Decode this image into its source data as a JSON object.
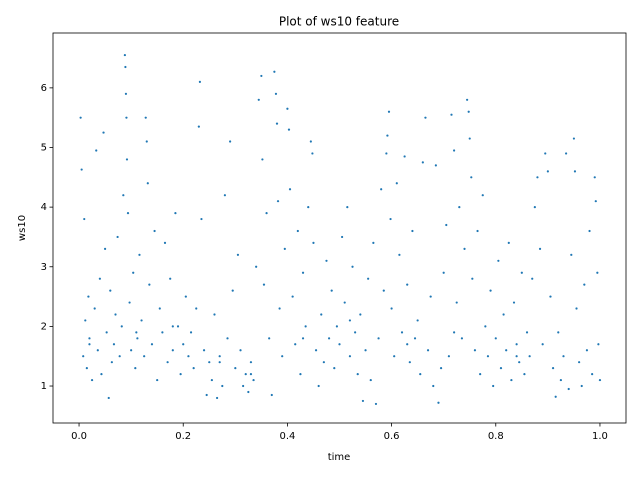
{
  "chart_data": {
    "type": "scatter",
    "title": "Plot of ws10 feature",
    "x_label": "time",
    "y_label": "ws10",
    "xlim": [
      -0.05,
      1.05
    ],
    "ylim": [
      0.38,
      6.92
    ],
    "xticks": [
      {
        "value": 0,
        "label": "0.0"
      },
      {
        "value": 0.2,
        "label": "0.2"
      },
      {
        "value": 0.4,
        "label": "0.4"
      },
      {
        "value": 0.6,
        "label": "0.6"
      },
      {
        "value": 0.8,
        "label": "0.8"
      },
      {
        "value": 1,
        "label": "1.0"
      }
    ],
    "yticks": [
      1,
      2,
      3,
      4,
      5,
      6
    ],
    "color": "#1f77b4",
    "x": [
      0.003,
      0.005,
      0.008,
      0.01,
      0.012,
      0.015,
      0.018,
      0.02,
      0.025,
      0.03,
      0.033,
      0.036,
      0.04,
      0.043,
      0.047,
      0.05,
      0.053,
      0.057,
      0.06,
      0.063,
      0.067,
      0.07,
      0.074,
      0.078,
      0.082,
      0.085,
      0.088,
      0.089,
      0.09,
      0.091,
      0.092,
      0.094,
      0.097,
      0.1,
      0.104,
      0.108,
      0.112,
      0.116,
      0.12,
      0.125,
      0.128,
      0.13,
      0.132,
      0.135,
      0.14,
      0.145,
      0.15,
      0.155,
      0.16,
      0.165,
      0.17,
      0.175,
      0.18,
      0.185,
      0.19,
      0.195,
      0.2,
      0.205,
      0.21,
      0.215,
      0.22,
      0.225,
      0.23,
      0.232,
      0.235,
      0.24,
      0.245,
      0.25,
      0.255,
      0.26,
      0.265,
      0.27,
      0.275,
      0.28,
      0.285,
      0.29,
      0.295,
      0.3,
      0.305,
      0.31,
      0.315,
      0.32,
      0.325,
      0.33,
      0.335,
      0.34,
      0.345,
      0.35,
      0.352,
      0.355,
      0.36,
      0.365,
      0.37,
      0.375,
      0.378,
      0.38,
      0.382,
      0.385,
      0.39,
      0.395,
      0.4,
      0.403,
      0.405,
      0.41,
      0.415,
      0.42,
      0.425,
      0.43,
      0.435,
      0.44,
      0.445,
      0.448,
      0.45,
      0.455,
      0.46,
      0.465,
      0.47,
      0.475,
      0.48,
      0.485,
      0.49,
      0.495,
      0.5,
      0.505,
      0.51,
      0.515,
      0.52,
      0.525,
      0.53,
      0.535,
      0.54,
      0.545,
      0.55,
      0.555,
      0.56,
      0.565,
      0.57,
      0.575,
      0.58,
      0.585,
      0.59,
      0.592,
      0.595,
      0.598,
      0.6,
      0.605,
      0.61,
      0.615,
      0.62,
      0.625,
      0.63,
      0.635,
      0.64,
      0.645,
      0.65,
      0.655,
      0.66,
      0.665,
      0.67,
      0.675,
      0.68,
      0.685,
      0.69,
      0.695,
      0.7,
      0.705,
      0.71,
      0.715,
      0.72,
      0.725,
      0.73,
      0.735,
      0.74,
      0.745,
      0.748,
      0.75,
      0.753,
      0.755,
      0.76,
      0.765,
      0.77,
      0.775,
      0.78,
      0.785,
      0.79,
      0.795,
      0.8,
      0.805,
      0.81,
      0.815,
      0.82,
      0.825,
      0.83,
      0.835,
      0.84,
      0.845,
      0.85,
      0.855,
      0.86,
      0.865,
      0.87,
      0.875,
      0.88,
      0.885,
      0.89,
      0.895,
      0.9,
      0.905,
      0.91,
      0.915,
      0.92,
      0.925,
      0.93,
      0.935,
      0.94,
      0.945,
      0.95,
      0.952,
      0.955,
      0.96,
      0.965,
      0.97,
      0.975,
      0.98,
      0.985,
      0.99,
      0.992,
      0.995,
      0.997,
      1.0,
      0.02,
      0.11,
      0.18,
      0.27,
      0.33,
      0.43,
      0.52,
      0.63,
      0.72,
      0.84
    ],
    "y": [
      5.5,
      4.63,
      1.5,
      3.8,
      2.1,
      1.3,
      2.5,
      1.8,
      1.1,
      2.3,
      4.95,
      1.6,
      2.8,
      1.2,
      5.25,
      3.3,
      1.9,
      0.8,
      2.6,
      1.4,
      1.7,
      2.2,
      3.5,
      1.5,
      2.0,
      4.2,
      6.55,
      6.35,
      5.9,
      5.5,
      4.8,
      3.9,
      2.4,
      1.6,
      2.9,
      1.3,
      1.8,
      3.2,
      2.1,
      1.5,
      5.5,
      5.1,
      4.4,
      2.7,
      1.7,
      3.6,
      1.1,
      2.3,
      1.9,
      3.4,
      1.4,
      2.8,
      1.6,
      3.9,
      2.0,
      1.2,
      1.7,
      2.5,
      1.5,
      1.9,
      1.3,
      2.3,
      5.35,
      6.1,
      3.8,
      1.6,
      0.85,
      1.4,
      1.1,
      2.2,
      0.8,
      1.5,
      1.0,
      4.2,
      1.8,
      5.1,
      2.6,
      1.3,
      3.2,
      1.6,
      1.0,
      1.2,
      0.9,
      1.4,
      1.1,
      3.0,
      5.8,
      6.2,
      4.8,
      2.7,
      3.9,
      1.8,
      0.85,
      6.27,
      5.9,
      5.4,
      4.1,
      2.3,
      1.5,
      3.3,
      5.65,
      5.3,
      4.3,
      2.5,
      1.7,
      3.6,
      1.2,
      2.9,
      2.0,
      4.0,
      5.1,
      4.9,
      3.4,
      1.6,
      1.0,
      2.2,
      1.4,
      3.1,
      1.8,
      2.6,
      1.3,
      2.0,
      1.7,
      3.5,
      2.4,
      4.0,
      1.5,
      3.0,
      1.9,
      1.2,
      2.2,
      0.75,
      1.6,
      2.8,
      1.1,
      3.4,
      0.7,
      1.8,
      4.3,
      2.6,
      4.9,
      5.2,
      5.6,
      3.8,
      2.3,
      1.5,
      4.4,
      3.2,
      1.9,
      4.85,
      2.7,
      1.4,
      3.6,
      1.8,
      2.1,
      1.2,
      4.75,
      5.5,
      1.6,
      2.5,
      1.0,
      4.7,
      0.72,
      1.3,
      2.9,
      3.7,
      1.5,
      5.55,
      4.95,
      2.4,
      4.0,
      1.8,
      3.3,
      5.8,
      5.6,
      5.15,
      4.5,
      2.8,
      1.6,
      3.6,
      1.2,
      4.2,
      2.0,
      1.5,
      2.6,
      1.0,
      1.8,
      3.1,
      1.3,
      2.2,
      1.6,
      3.4,
      1.1,
      2.4,
      1.7,
      1.4,
      2.9,
      1.2,
      1.9,
      1.5,
      2.8,
      4.0,
      4.5,
      3.3,
      1.7,
      4.9,
      4.6,
      2.5,
      1.3,
      0.82,
      1.9,
      1.1,
      1.5,
      4.9,
      0.95,
      3.2,
      5.15,
      4.6,
      2.3,
      1.4,
      1.0,
      2.7,
      1.6,
      3.6,
      1.2,
      4.5,
      4.1,
      2.9,
      1.7,
      1.1,
      1.7,
      1.9,
      2.0,
      1.4,
      1.2,
      1.8,
      2.1,
      1.7,
      1.9,
      1.5
    ]
  }
}
